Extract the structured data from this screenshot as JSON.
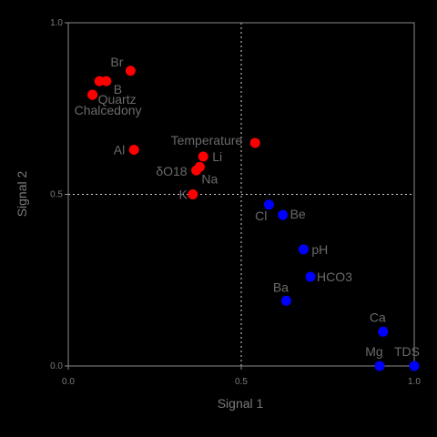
{
  "chart_data": {
    "type": "scatter",
    "xlabel": "Signal 1",
    "ylabel": "Signal 2",
    "xlim": [
      0.0,
      1.0
    ],
    "ylim": [
      0.0,
      1.0
    ],
    "xticks": [
      "0.0",
      "0.5",
      "1.0"
    ],
    "yticks": [
      "0.0",
      "0.5",
      "1.0"
    ],
    "grid": true,
    "series": [
      {
        "color": "#ff0000",
        "points": [
          {
            "label": "Br",
            "x": 0.18,
            "y": 0.86
          },
          {
            "label": "B",
            "x": 0.11,
            "y": 0.83
          },
          {
            "label": "",
            "x": 0.09,
            "y": 0.83
          },
          {
            "label": "Quartz",
            "x": 0.07,
            "y": 0.79
          },
          {
            "label": "Chalcedony",
            "x": 0.07,
            "y": 0.79
          },
          {
            "label": "Temperature",
            "x": 0.54,
            "y": 0.65
          },
          {
            "label": "Al",
            "x": 0.19,
            "y": 0.63
          },
          {
            "label": "Li",
            "x": 0.39,
            "y": 0.61
          },
          {
            "label": "Na",
            "x": 0.38,
            "y": 0.58
          },
          {
            "label": "δO18",
            "x": 0.37,
            "y": 0.57
          },
          {
            "label": "K",
            "x": 0.36,
            "y": 0.5
          }
        ]
      },
      {
        "color": "#0000ff",
        "points": [
          {
            "label": "Cl",
            "x": 0.58,
            "y": 0.47
          },
          {
            "label": "Be",
            "x": 0.62,
            "y": 0.44
          },
          {
            "label": "pH",
            "x": 0.68,
            "y": 0.34
          },
          {
            "label": "HCO3",
            "x": 0.7,
            "y": 0.26
          },
          {
            "label": "Ba",
            "x": 0.63,
            "y": 0.19
          },
          {
            "label": "Ca",
            "x": 0.91,
            "y": 0.1
          },
          {
            "label": "Mg",
            "x": 0.9,
            "y": 0.0
          },
          {
            "label": "TDS",
            "x": 1.0,
            "y": 0.0
          }
        ]
      }
    ]
  }
}
